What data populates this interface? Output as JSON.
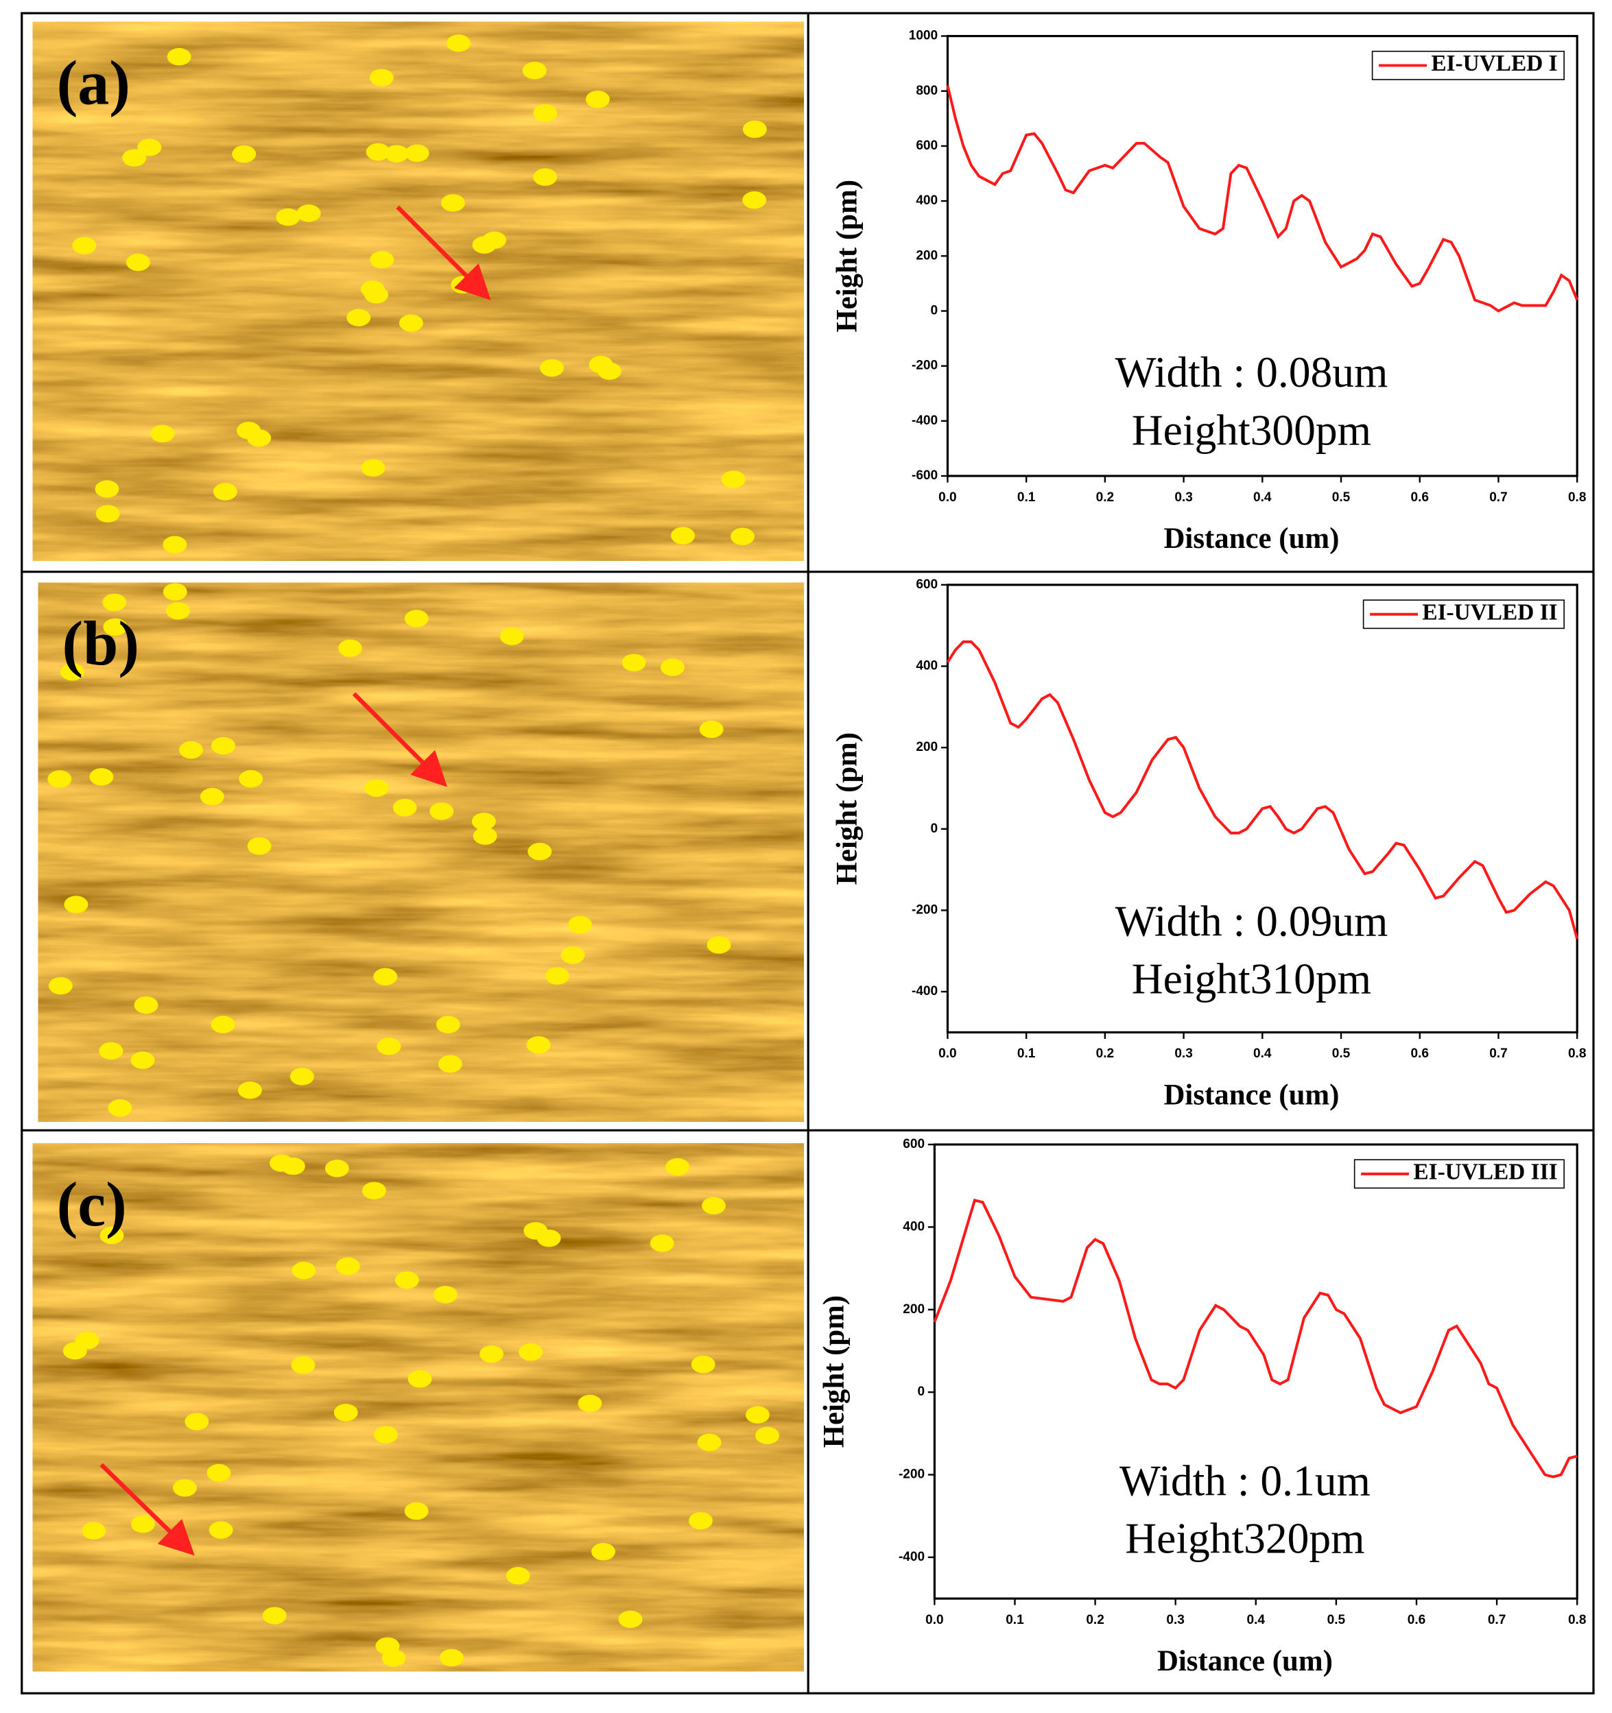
{
  "panels": [
    {
      "label": "(a)"
    },
    {
      "label": "(b)"
    },
    {
      "label": "(c)"
    }
  ],
  "chart_data": [
    {
      "type": "line",
      "xlabel": "Distance (um)",
      "ylabel": "Height (pm)",
      "xlim": [
        0,
        0.8
      ],
      "ylim": [
        -600,
        1000
      ],
      "xticks": [
        {
          "value": 0,
          "label": "0.0"
        },
        0.1,
        0.2,
        0.3,
        0.4,
        0.5,
        0.6,
        0.7,
        0.8
      ],
      "yticks": [
        -600,
        -400,
        -200,
        0,
        200,
        400,
        600,
        800,
        1000
      ],
      "annotations": [
        "Width : 0.08um",
        "Height300pm"
      ],
      "x": [
        0,
        0.01,
        0.02,
        0.03,
        0.04,
        0.06,
        0.07,
        0.08,
        0.1,
        0.11,
        0.12,
        0.14,
        0.15,
        0.16,
        0.18,
        0.2,
        0.21,
        0.23,
        0.24,
        0.25,
        0.27,
        0.28,
        0.3,
        0.32,
        0.34,
        0.35,
        0.36,
        0.37,
        0.38,
        0.4,
        0.42,
        0.43,
        0.44,
        0.45,
        0.46,
        0.48,
        0.5,
        0.52,
        0.53,
        0.54,
        0.55,
        0.57,
        0.59,
        0.6,
        0.61,
        0.63,
        0.64,
        0.65,
        0.67,
        0.69,
        0.7,
        0.72,
        0.73,
        0.76,
        0.77,
        0.78,
        0.79,
        0.8
      ],
      "series": [
        {
          "name": "EI-UVLED I",
          "color": "#ff1a1a",
          "values": [
            820,
            700,
            600,
            530,
            490,
            460,
            500,
            510,
            640,
            645,
            610,
            500,
            440,
            430,
            510,
            530,
            520,
            580,
            610,
            610,
            560,
            540,
            380,
            300,
            280,
            300,
            500,
            530,
            520,
            400,
            270,
            300,
            400,
            420,
            400,
            250,
            160,
            190,
            220,
            280,
            270,
            170,
            90,
            100,
            150,
            260,
            250,
            200,
            40,
            20,
            0,
            30,
            20,
            20,
            70,
            130,
            110,
            40
          ]
        }
      ]
    },
    {
      "type": "line",
      "xlabel": "Distance (um)",
      "ylabel": "Height (pm)",
      "xlim": [
        0,
        0.8
      ],
      "ylim": [
        -500,
        600
      ],
      "xticks": [
        {
          "value": 0,
          "label": "0.0"
        },
        0.1,
        0.2,
        0.3,
        0.4,
        0.5,
        0.6,
        0.7,
        0.8
      ],
      "yticks": [
        -400,
        -200,
        0,
        200,
        400,
        600
      ],
      "annotations": [
        "Width : 0.09um",
        "Height310pm"
      ],
      "x": [
        0,
        0.01,
        0.02,
        0.03,
        0.04,
        0.06,
        0.08,
        0.09,
        0.1,
        0.12,
        0.13,
        0.14,
        0.16,
        0.18,
        0.2,
        0.21,
        0.22,
        0.24,
        0.26,
        0.28,
        0.29,
        0.3,
        0.32,
        0.34,
        0.36,
        0.37,
        0.38,
        0.4,
        0.41,
        0.42,
        0.43,
        0.44,
        0.45,
        0.47,
        0.48,
        0.49,
        0.51,
        0.53,
        0.54,
        0.56,
        0.57,
        0.58,
        0.6,
        0.62,
        0.63,
        0.65,
        0.67,
        0.68,
        0.7,
        0.71,
        0.72,
        0.74,
        0.76,
        0.77,
        0.79,
        0.8
      ],
      "series": [
        {
          "name": "EI-UVLED II",
          "color": "#ff1a1a",
          "values": [
            410,
            440,
            460,
            460,
            440,
            360,
            260,
            250,
            270,
            320,
            330,
            310,
            220,
            120,
            40,
            30,
            40,
            90,
            170,
            220,
            225,
            200,
            100,
            30,
            -10,
            -10,
            0,
            50,
            55,
            30,
            0,
            -10,
            0,
            50,
            55,
            40,
            -50,
            -110,
            -105,
            -60,
            -35,
            -40,
            -100,
            -170,
            -165,
            -120,
            -80,
            -90,
            -170,
            -205,
            -200,
            -160,
            -130,
            -140,
            -200,
            -270
          ]
        }
      ]
    },
    {
      "type": "line",
      "xlabel": "Distance (um)",
      "ylabel": "Height (pm)",
      "xlim": [
        0,
        0.8
      ],
      "ylim": [
        -500,
        600
      ],
      "xticks": [
        {
          "value": 0,
          "label": "0.0"
        },
        0.1,
        0.2,
        0.3,
        0.4,
        0.5,
        0.6,
        0.7,
        0.8
      ],
      "yticks": [
        -400,
        -200,
        0,
        200,
        400,
        600
      ],
      "annotations": [
        "Width : 0.1um",
        "Height320pm"
      ],
      "x": [
        0,
        0.02,
        0.04,
        0.05,
        0.06,
        0.08,
        0.1,
        0.12,
        0.14,
        0.16,
        0.17,
        0.19,
        0.2,
        0.21,
        0.23,
        0.25,
        0.27,
        0.28,
        0.29,
        0.3,
        0.31,
        0.33,
        0.35,
        0.36,
        0.38,
        0.39,
        0.41,
        0.42,
        0.43,
        0.44,
        0.46,
        0.48,
        0.49,
        0.5,
        0.51,
        0.53,
        0.55,
        0.56,
        0.58,
        0.6,
        0.62,
        0.64,
        0.65,
        0.66,
        0.68,
        0.69,
        0.7,
        0.72,
        0.74,
        0.76,
        0.77,
        0.78,
        0.79,
        0.8
      ],
      "series": [
        {
          "name": "EI-UVLED III",
          "color": "#ff1a1a",
          "values": [
            170,
            270,
            400,
            465,
            460,
            380,
            280,
            230,
            225,
            220,
            230,
            350,
            370,
            360,
            270,
            130,
            30,
            20,
            20,
            10,
            30,
            150,
            210,
            200,
            160,
            150,
            90,
            30,
            20,
            30,
            180,
            240,
            235,
            200,
            190,
            130,
            10,
            -30,
            -50,
            -35,
            50,
            150,
            160,
            130,
            70,
            20,
            10,
            -80,
            -140,
            -200,
            -205,
            -200,
            -160,
            -155
          ]
        }
      ]
    }
  ]
}
